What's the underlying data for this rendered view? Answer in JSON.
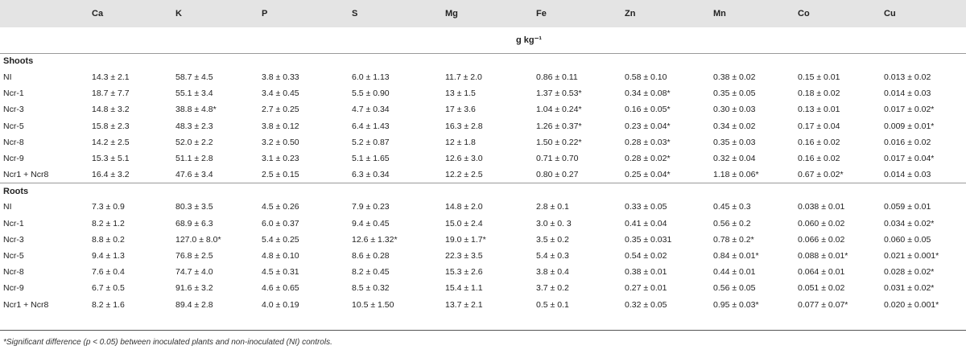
{
  "columns": [
    "Ca",
    "K",
    "P",
    "S",
    "Mg",
    "Fe",
    "Zn",
    "Mn",
    "Co",
    "Cu"
  ],
  "unit": "g kg⁻¹",
  "sections": [
    {
      "title": "Shoots",
      "rows": [
        {
          "label": "NI",
          "values": [
            "14.3 ± 2.1",
            "58.7 ± 4.5",
            "3.8 ± 0.33",
            "6.0 ± 1.13",
            "11.7 ± 2.0",
            "0.86 ± 0.11",
            "0.58 ± 0.10",
            "0.38 ± 0.02",
            "0.15 ± 0.01",
            "0.013 ± 0.02"
          ]
        },
        {
          "label": "Ncr-1",
          "values": [
            "18.7 ± 7.7",
            "55.1 ± 3.4",
            "3.4 ± 0.45",
            "5.5 ± 0.90",
            "13 ± 1.5",
            "1.37 ± 0.53*",
            "0.34 ± 0.08*",
            "0.35 ± 0.05",
            "0.18 ± 0.02",
            "0.014 ± 0.03"
          ]
        },
        {
          "label": "Ncr-3",
          "values": [
            "14.8 ± 3.2",
            "38.8 ± 4.8*",
            "2.7 ± 0.25",
            "4.7 ± 0.34",
            "17 ± 3.6",
            "1.04 ± 0.24*",
            "0.16 ± 0.05*",
            "0.30 ± 0.03",
            "0.13 ± 0.01",
            "0.017 ± 0.02*"
          ]
        },
        {
          "label": "Ncr-5",
          "values": [
            "15.8 ± 2.3",
            "48.3 ± 2.3",
            "3.8 ± 0.12",
            "6.4 ± 1.43",
            "16.3 ± 2.8",
            "1.26 ± 0.37*",
            "0.23 ± 0.04*",
            "0.34 ± 0.02",
            "0.17 ± 0.04",
            "0.009 ± 0.01*"
          ]
        },
        {
          "label": "Ncr-8",
          "values": [
            "14.2 ± 2.5",
            "52.0 ± 2.2",
            "3.2 ± 0.50",
            "5.2 ± 0.87",
            "12 ± 1.8",
            "1.50 ± 0.22*",
            "0.28 ± 0.03*",
            "0.35 ± 0.03",
            "0.16 ± 0.02",
            "0.016 ± 0.02"
          ]
        },
        {
          "label": "Ncr-9",
          "values": [
            "15.3 ± 5.1",
            "51.1 ± 2.8",
            "3.1 ± 0.23",
            "5.1 ± 1.65",
            "12.6 ± 3.0",
            "0.71 ± 0.70",
            "0.28 ± 0.02*",
            "0.32 ± 0.04",
            "0.16 ± 0.02",
            "0.017 ± 0.04*"
          ]
        },
        {
          "label": "Ncr1 + Ncr8",
          "values": [
            "16.4 ± 3.2",
            "47.6 ± 3.4",
            "2.5 ± 0.15",
            "6.3 ± 0.34",
            "12.2 ± 2.5",
            "0.80 ± 0.27",
            "0.25 ± 0.04*",
            "1.18 ± 0.06*",
            "0.67 ± 0.02*",
            "0.014 ± 0.03"
          ]
        }
      ]
    },
    {
      "title": "Roots",
      "rows": [
        {
          "label": "NI",
          "values": [
            "7.3 ± 0.9",
            "80.3 ± 3.5",
            "4.5 ± 0.26",
            "7.9 ± 0.23",
            "14.8 ± 2.0",
            "2.8 ± 0.1",
            "0.33 ± 0.05",
            "0.45 ± 0.3",
            "0.038 ± 0.01",
            "0.059 ± 0.01"
          ]
        },
        {
          "label": "Ncr-1",
          "values": [
            "8.2 ± 1.2",
            "68.9 ± 6.3",
            "6.0 ± 0.37",
            "9.4 ± 0.45",
            "15.0 ± 2.4",
            "3.0 ± 0. 3",
            "0.41 ± 0.04",
            "0.56 ± 0.2",
            "0.060 ± 0.02",
            "0.034 ± 0.02*"
          ]
        },
        {
          "label": "Ncr-3",
          "values": [
            "8.8 ± 0.2",
            "127.0 ± 8.0*",
            "5.4 ± 0.25",
            "12.6 ± 1.32*",
            "19.0 ± 1.7*",
            "3.5 ± 0.2",
            "0.35 ± 0.031",
            "0.78 ± 0.2*",
            "0.066 ± 0.02",
            "0.060 ± 0.05"
          ]
        },
        {
          "label": "Ncr-5",
          "values": [
            "9.4 ± 1.3",
            "76.8 ± 2.5",
            "4.8 ± 0.10",
            "8.6 ± 0.28",
            "22.3 ± 3.5",
            "5.4 ± 0.3",
            "0.54 ± 0.02",
            "0.84 ± 0.01*",
            "0.088 ± 0.01*",
            "0.021 ± 0.001*"
          ]
        },
        {
          "label": "Ncr-8",
          "values": [
            "7.6 ± 0.4",
            "74.7 ± 4.0",
            "4.5 ± 0.31",
            "8.2 ± 0.45",
            "15.3 ± 2.6",
            "3.8 ± 0.4",
            "0.38 ± 0.01",
            "0.44 ± 0.01",
            "0.064 ± 0.01",
            "0.028 ± 0.02*"
          ]
        },
        {
          "label": "Ncr-9",
          "values": [
            "6.7 ± 0.5",
            "91.6 ± 3.2",
            "4.6 ± 0.65",
            "8.5 ± 0.32",
            "15.4 ± 1.1",
            "3.7 ± 0.2",
            "0.27 ± 0.01",
            "0.56 ± 0.05",
            "0.051 ± 0.02",
            "0.031 ± 0.02*"
          ]
        },
        {
          "label": "Ncr1 + Ncr8",
          "values": [
            "8.2 ± 1.6",
            "89.4 ± 2.8",
            "4.0 ± 0.19",
            "10.5 ± 1.50",
            "13.7 ± 2.1",
            "0.5 ± 0.1",
            "0.32 ± 0.05",
            "0.95 ± 0.03*",
            "0.077 ± 0.07*",
            "0.020 ± 0.001*"
          ]
        }
      ]
    }
  ],
  "footnote": "*Significant difference (p < 0.05) between inoculated plants and non-inoculated (NI) controls."
}
